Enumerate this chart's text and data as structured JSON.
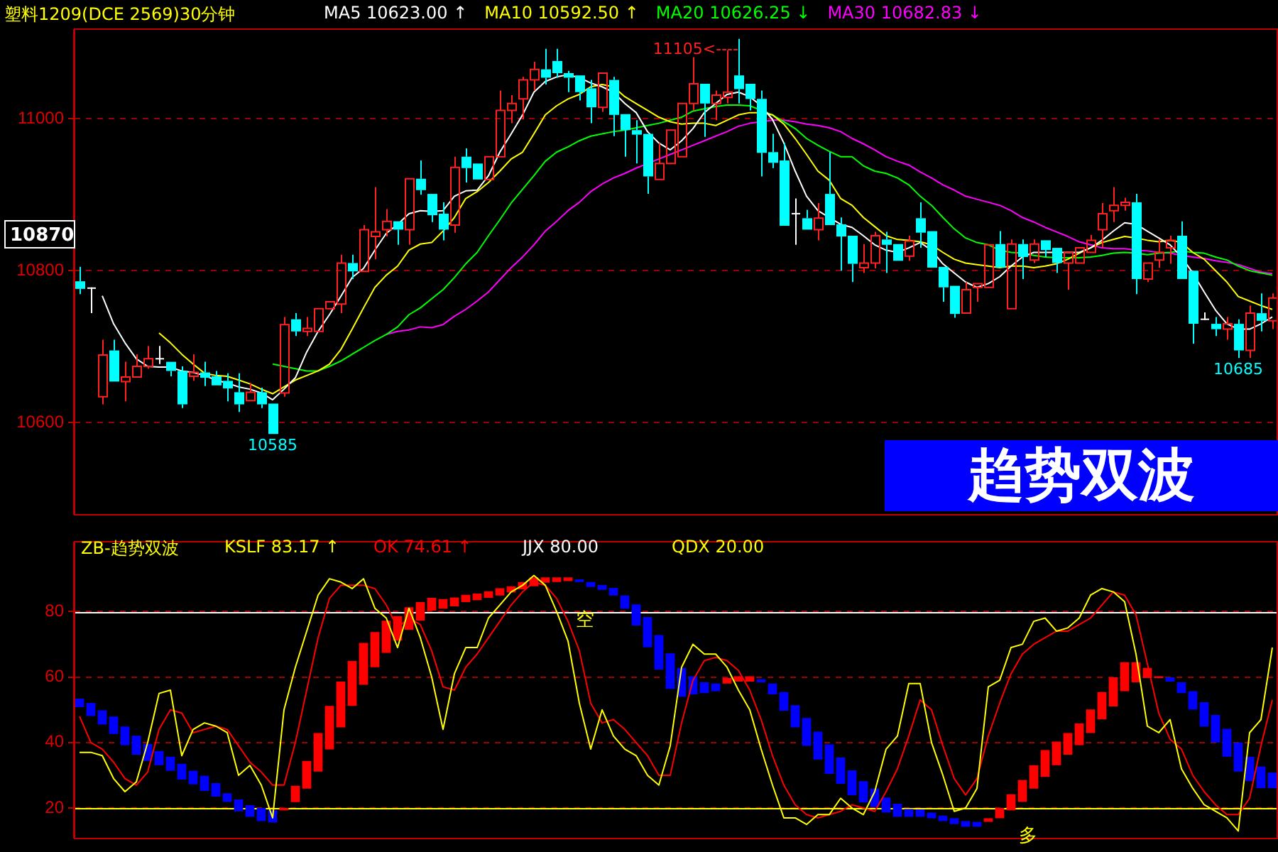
{
  "chart_data": [
    {
      "type": "candlestick",
      "title": "塑料1209(DCE 2569)30分钟",
      "legend": "top",
      "grid": "y",
      "tick_labels": "y",
      "categories": [
        null,
        null,
        null,
        null,
        null,
        null,
        null,
        null,
        null,
        null,
        null,
        null,
        null,
        null,
        null,
        null,
        null,
        null,
        null,
        null,
        null,
        null,
        null,
        null,
        null,
        null,
        null,
        null,
        null,
        null,
        null,
        null,
        null,
        null,
        null,
        null,
        null,
        null,
        null,
        null,
        null,
        null,
        null,
        null,
        null,
        null,
        null,
        null,
        null,
        null,
        null,
        null,
        null,
        null,
        null,
        null,
        null,
        null,
        null,
        null,
        null,
        null,
        null,
        null,
        null,
        null,
        null,
        null,
        null,
        null,
        null,
        null,
        null,
        null,
        null,
        null,
        null,
        null,
        null,
        null,
        null,
        null,
        null,
        null,
        null,
        null,
        null,
        null,
        null,
        null,
        null,
        null,
        null,
        null,
        null,
        null,
        null,
        null,
        null,
        null,
        null,
        null,
        null,
        null,
        null,
        null
      ],
      "ohlc": [
        [
          10786,
          10805,
          10769,
          10776
        ],
        [
          10777,
          10778,
          10744,
          10777
        ],
        [
          10634,
          10709,
          10624,
          10689
        ],
        [
          10695,
          10709,
          10654,
          10654
        ],
        [
          10654,
          10680,
          10628,
          10660
        ],
        [
          10660,
          10690,
          10660,
          10674
        ],
        [
          10674,
          10701,
          10671,
          10684
        ],
        [
          10684,
          10701,
          10677,
          10684
        ],
        [
          10680,
          10680,
          10661,
          10668
        ],
        [
          10668,
          10674,
          10619,
          10624
        ],
        [
          10661,
          10690,
          10655,
          10666
        ],
        [
          10666,
          10680,
          10648,
          10659
        ],
        [
          10661,
          10668,
          10649,
          10649
        ],
        [
          10655,
          10665,
          10628,
          10645
        ],
        [
          10640,
          10665,
          10614,
          10624
        ],
        [
          10629,
          10652,
          10629,
          10640
        ],
        [
          10640,
          10646,
          10619,
          10624
        ],
        [
          10625,
          10625,
          10585,
          10585
        ],
        [
          10639,
          10739,
          10634,
          10729
        ],
        [
          10736,
          10744,
          10714,
          10720
        ],
        [
          10720,
          10739,
          10714,
          10724
        ],
        [
          10720,
          10750,
          10720,
          10750
        ],
        [
          10750,
          10759,
          10750,
          10759
        ],
        [
          10756,
          10821,
          10744,
          10810
        ],
        [
          10810,
          10821,
          10789,
          10799
        ],
        [
          10799,
          10860,
          10799,
          10854
        ],
        [
          10845,
          10910,
          10815,
          10851
        ],
        [
          10854,
          10881,
          10845,
          10865
        ],
        [
          10865,
          10865,
          10834,
          10854
        ],
        [
          10854,
          10921,
          10834,
          10921
        ],
        [
          10921,
          10945,
          10900,
          10906
        ],
        [
          10901,
          10901,
          10864,
          10873
        ],
        [
          10875,
          10890,
          10840,
          10854
        ],
        [
          10860,
          10950,
          10850,
          10936
        ],
        [
          10950,
          10961,
          10916,
          10935
        ],
        [
          10941,
          10941,
          10920,
          10920
        ],
        [
          10920,
          10950,
          10920,
          10950
        ],
        [
          10950,
          11037,
          10950,
          11011
        ],
        [
          11011,
          11031,
          10994,
          11020
        ],
        [
          11026,
          11055,
          10999,
          11051
        ],
        [
          11051,
          11075,
          11037,
          11065
        ],
        [
          11065,
          11092,
          11045,
          11054
        ],
        [
          11076,
          11092,
          11054,
          11060
        ],
        [
          11060,
          11063,
          11035,
          11054
        ],
        [
          11057,
          11057,
          11024,
          11035
        ],
        [
          11040,
          11051,
          10994,
          11015
        ],
        [
          11015,
          11060,
          11009,
          11060
        ],
        [
          11051,
          11055,
          10977,
          11005
        ],
        [
          11006,
          11006,
          10950,
          10985
        ],
        [
          10985,
          10998,
          10941,
          10979
        ],
        [
          10980,
          10980,
          10901,
          10924
        ],
        [
          10920,
          10968,
          10920,
          10941
        ],
        [
          10941,
          10985,
          10941,
          10985
        ],
        [
          10950,
          11020,
          10950,
          11020
        ],
        [
          11020,
          11081,
          11011,
          11046
        ],
        [
          11046,
          11046,
          10976,
          11020
        ],
        [
          11020,
          11037,
          10998,
          11031
        ],
        [
          11028,
          11090,
          11020,
          11035
        ],
        [
          11057,
          11105,
          11020,
          11039
        ],
        [
          11046,
          11046,
          11011,
          11026
        ],
        [
          11026,
          11037,
          10924,
          10955
        ],
        [
          10956,
          10980,
          10935,
          10942
        ],
        [
          10945,
          10968,
          10859,
          10859
        ],
        [
          10875,
          10895,
          10834,
          10875
        ],
        [
          10869,
          10880,
          10854,
          10854
        ],
        [
          10854,
          10889,
          10840,
          10869
        ],
        [
          10901,
          10956,
          10860,
          10860
        ],
        [
          10861,
          10870,
          10800,
          10845
        ],
        [
          10846,
          10846,
          10785,
          10809
        ],
        [
          10804,
          10835,
          10797,
          10810
        ],
        [
          10810,
          10851,
          10803,
          10846
        ],
        [
          10841,
          10851,
          10797,
          10834
        ],
        [
          10835,
          10835,
          10813,
          10813
        ],
        [
          10819,
          10846,
          10813,
          10839
        ],
        [
          10869,
          10890,
          10830,
          10850
        ],
        [
          10852,
          10852,
          10804,
          10804
        ],
        [
          10805,
          10805,
          10759,
          10778
        ],
        [
          10780,
          10780,
          10738,
          10743
        ],
        [
          10744,
          10785,
          10744,
          10775
        ],
        [
          10778,
          10783,
          10759,
          10783
        ],
        [
          10778,
          10834,
          10778,
          10834
        ],
        [
          10835,
          10852,
          10804,
          10804
        ],
        [
          10750,
          10841,
          10750,
          10835
        ],
        [
          10835,
          10841,
          10789,
          10818
        ],
        [
          10814,
          10841,
          10810,
          10835
        ],
        [
          10840,
          10840,
          10818,
          10827
        ],
        [
          10830,
          10830,
          10797,
          10810
        ],
        [
          10810,
          10824,
          10775,
          10824
        ],
        [
          10810,
          10830,
          10810,
          10830
        ],
        [
          10824,
          10847,
          10824,
          10840
        ],
        [
          10854,
          10889,
          10830,
          10875
        ],
        [
          10879,
          10910,
          10864,
          10886
        ],
        [
          10886,
          10896,
          10879,
          10890
        ],
        [
          10890,
          10901,
          10769,
          10789
        ],
        [
          10789,
          10810,
          10785,
          10810
        ],
        [
          10814,
          10841,
          10804,
          10824
        ],
        [
          10830,
          10846,
          10809,
          10840
        ],
        [
          10846,
          10865,
          10789,
          10789
        ],
        [
          10800,
          10800,
          10704,
          10730
        ],
        [
          10736,
          10745,
          10735,
          10736
        ],
        [
          10730,
          10739,
          10714,
          10723
        ],
        [
          10723,
          10739,
          10709,
          10730
        ],
        [
          10730,
          10736,
          10685,
          10695
        ],
        [
          10695,
          10754,
          10685,
          10744
        ],
        [
          10744,
          10770,
          10720,
          10734
        ],
        [
          10734,
          10770,
          10723,
          10764
        ]
      ],
      "series": [
        {
          "name": "MA5 10623.00 ↑",
          "color": "#ffffff",
          "type": "line",
          "values": [
            null,
            null,
            10767,
            10730,
            10705,
            10684,
            10674,
            10673,
            10673,
            10668,
            10666,
            10662,
            10656,
            10652,
            10647,
            10644,
            10639,
            10630,
            10644,
            10659,
            10693,
            10720,
            10742,
            10766,
            10791,
            10803,
            10827,
            10849,
            10861,
            10875,
            10879,
            10878,
            10879,
            10898,
            10905,
            10906,
            10925,
            10956,
            10980,
            11005,
            11035,
            11049,
            11055,
            11058,
            11054,
            11047,
            11042,
            11035,
            11020,
            11008,
            10983,
            10968,
            10959,
            10971,
            10987,
            11008,
            11020,
            11032,
            11035,
            11029,
            11017,
            10999,
            10968,
            10931,
            10898,
            10879,
            10870,
            10861,
            10857,
            10846,
            10834,
            10827,
            10824,
            10830,
            10837,
            10827,
            10809,
            10797,
            10785,
            10778,
            10783,
            10792,
            10806,
            10818,
            10824,
            10824,
            10824,
            10824,
            10824,
            10830,
            10840,
            10852,
            10863,
            10861,
            10852,
            10843,
            10834,
            10818,
            10797,
            10772,
            10748,
            10730,
            10723,
            10723,
            10730,
            10739
          ]
        },
        {
          "name": "MA10 10592.50 ↑",
          "color": "#ffff00",
          "type": "line",
          "values": [
            null,
            null,
            null,
            null,
            null,
            null,
            null,
            10718,
            10705,
            10690,
            10677,
            10665,
            10662,
            10661,
            10656,
            10651,
            10644,
            10638,
            10647,
            10656,
            10662,
            10668,
            10677,
            10696,
            10723,
            10751,
            10778,
            10794,
            10806,
            10827,
            10835,
            10837,
            10852,
            10870,
            10895,
            10904,
            10916,
            10931,
            10947,
            10956,
            10980,
            11005,
            11017,
            11026,
            11032,
            11042,
            11045,
            11042,
            11029,
            11020,
            11011,
            11002,
            10996,
            10993,
            10994,
            10994,
            10991,
            10998,
            11005,
            11008,
            11008,
            11005,
            10993,
            10974,
            10953,
            10931,
            10919,
            10895,
            10886,
            10870,
            10858,
            10846,
            10841,
            10840,
            10838,
            10834,
            10824,
            10815,
            10810,
            10808,
            10806,
            10804,
            10806,
            10806,
            10804,
            10806,
            10809,
            10815,
            10823,
            10830,
            10837,
            10841,
            10845,
            10843,
            10840,
            10838,
            10840,
            10837,
            10824,
            10815,
            10800,
            10785,
            10766,
            10760,
            10754,
            10749
          ]
        },
        {
          "name": "MA20 10626.25 ↓",
          "color": "#00ff00",
          "type": "line",
          "values": [
            null,
            null,
            null,
            null,
            null,
            null,
            null,
            null,
            null,
            null,
            null,
            null,
            null,
            null,
            null,
            null,
            null,
            10677,
            10674,
            10671,
            10668,
            10668,
            10674,
            10681,
            10690,
            10699,
            10708,
            10716,
            10726,
            10742,
            10751,
            10763,
            10775,
            10791,
            10809,
            10824,
            10846,
            10867,
            10889,
            10907,
            10925,
            10944,
            10956,
            10963,
            10971,
            10977,
            10980,
            10983,
            10985,
            10988,
            10991,
            10994,
            10998,
            11002,
            11010,
            11013,
            11016,
            11018,
            11018,
            11017,
            11011,
            11005,
            10996,
            10987,
            10974,
            10965,
            10957,
            10950,
            10950,
            10938,
            10931,
            10928,
            10922,
            10913,
            10898,
            10886,
            10870,
            10855,
            10843,
            10837,
            10834,
            10827,
            10824,
            10823,
            10820,
            10818,
            10817,
            10817,
            10817,
            10818,
            10820,
            10823,
            10824,
            10823,
            10821,
            10823,
            10824,
            10826,
            10824,
            10823,
            10818,
            10814,
            10806,
            10800,
            10797,
            10794
          ]
        },
        {
          "name": "MA30 10682.83 ↓",
          "color": "#ff00ff",
          "type": "line",
          "values": [
            null,
            null,
            null,
            null,
            null,
            null,
            null,
            null,
            null,
            null,
            null,
            null,
            null,
            null,
            null,
            null,
            null,
            null,
            null,
            null,
            null,
            null,
            null,
            null,
            null,
            null,
            null,
            10716,
            10720,
            10722,
            10726,
            10725,
            10729,
            10740,
            10749,
            10760,
            10772,
            10788,
            10804,
            10818,
            10834,
            10852,
            10865,
            10879,
            10890,
            10904,
            10914,
            10922,
            10928,
            10935,
            10941,
            10947,
            10953,
            10959,
            10965,
            10971,
            10977,
            10983,
            10990,
            10994,
            10996,
            10998,
            10998,
            10996,
            10993,
            10991,
            10988,
            10983,
            10974,
            10967,
            10959,
            10950,
            10944,
            10939,
            10930,
            10922,
            10913,
            10906,
            10898,
            10894,
            10890,
            10886,
            10879,
            10870,
            10864,
            10857,
            10851,
            10845,
            10838,
            10834,
            10830,
            10829,
            10829,
            10827,
            10826,
            10824,
            10823,
            10820,
            10818,
            10816,
            10813,
            10811,
            10808,
            10803,
            10798,
            10796
          ]
        }
      ],
      "ylim": [
        10480,
        11117
      ],
      "yticks": [
        10600,
        10800,
        11000
      ],
      "annotations": [
        "11105<----",
        {
          "text": "10585",
          "y": 10585
        },
        {
          "text": "10685",
          "y": 10685
        },
        "10870",
        "趋势双波"
      ]
    },
    {
      "type": "bar",
      "title": "ZB-趋势双波",
      "legend": "top",
      "grid": "y",
      "tick_labels": "y",
      "categories": [
        null,
        null,
        null,
        null,
        null,
        null,
        null,
        null,
        null,
        null,
        null,
        null,
        null,
        null,
        null,
        null,
        null,
        null,
        null,
        null,
        null,
        null,
        null,
        null,
        null,
        null,
        null,
        null,
        null,
        null,
        null,
        null,
        null,
        null,
        null,
        null,
        null,
        null,
        null,
        null,
        null,
        null,
        null,
        null,
        null,
        null,
        null,
        null,
        null,
        null,
        null,
        null,
        null,
        null,
        null,
        null,
        null,
        null,
        null,
        null,
        null,
        null,
        null,
        null,
        null,
        null,
        null,
        null,
        null,
        null,
        null,
        null,
        null,
        null,
        null,
        null,
        null,
        null,
        null,
        null,
        null,
        null,
        null,
        null,
        null,
        null,
        null,
        null,
        null,
        null,
        null,
        null,
        null,
        null,
        null,
        null,
        null,
        null,
        null,
        null,
        null,
        null,
        null,
        null,
        null,
        null
      ],
      "series": [
        {
          "type": "bar",
          "colors": [
            "#0000ff",
            "#0000ff",
            "#0000ff",
            "#0000ff",
            "#0000ff",
            "#0000ff",
            "#0000ff",
            "#0000ff",
            "#0000ff",
            "#0000ff",
            "#0000ff",
            "#0000ff",
            "#0000ff",
            "#0000ff",
            "#0000ff",
            "#0000ff",
            "#0000ff",
            "#0000ff",
            "#ff0000",
            "#ff0000",
            "#ff0000",
            "#ff0000",
            "#ff0000",
            "#ff0000",
            "#ff0000",
            "#ff0000",
            "#ff0000",
            "#ff0000",
            "#ff0000",
            "#ff0000",
            "#ff0000",
            "#ff0000",
            "#ff0000",
            "#ff0000",
            "#ff0000",
            "#ff0000",
            "#ff0000",
            "#ff0000",
            "#ff0000",
            "#ff0000",
            "#ff0000",
            "#ff0000",
            "#ff0000",
            "#ff0000",
            "#0000ff",
            "#0000ff",
            "#0000ff",
            "#0000ff",
            "#0000ff",
            "#0000ff",
            "#0000ff",
            "#0000ff",
            "#0000ff",
            "#0000ff",
            "#0000ff",
            "#0000ff",
            "#0000ff",
            "#ff0000",
            "#ff0000",
            "#ff0000",
            "#0000ff",
            "#0000ff",
            "#0000ff",
            "#0000ff",
            "#0000ff",
            "#0000ff",
            "#0000ff",
            "#0000ff",
            "#0000ff",
            "#0000ff",
            "#0000ff",
            "#0000ff",
            "#0000ff",
            "#0000ff",
            "#0000ff",
            "#0000ff",
            "#0000ff",
            "#0000ff",
            "#0000ff",
            "#0000ff",
            "#ff0000",
            "#ff0000",
            "#ff0000",
            "#ff0000",
            "#ff0000",
            "#ff0000",
            "#ff0000",
            "#ff0000",
            "#ff0000",
            "#ff0000",
            "#ff0000",
            "#ff0000",
            "#ff0000",
            "#ff0000",
            "#ff0000",
            "#ff0000",
            "#0000ff",
            "#0000ff",
            "#0000ff",
            "#0000ff",
            "#0000ff",
            "#0000ff",
            "#0000ff",
            "#0000ff",
            "#0000ff",
            "#0000ff"
          ],
          "base": [
            50.8,
            48.1,
            45.5,
            42.6,
            39.2,
            36.3,
            34.4,
            33.1,
            31.4,
            28.7,
            27.2,
            25.2,
            23.5,
            21.9,
            19.0,
            17.3,
            16.0,
            15.6,
            19.3,
            21.8,
            25.9,
            31.1,
            37.9,
            44.6,
            51.2,
            57.6,
            63.0,
            67.4,
            71.1,
            74.4,
            77.2,
            80.3,
            80.9,
            81.6,
            82.9,
            83.5,
            84.2,
            84.9,
            85.8,
            86.8,
            87.7,
            88.8,
            89.0,
            89.3,
            89.0,
            87.5,
            86.6,
            84.9,
            80.9,
            75.7,
            69.1,
            62.3,
            56.4,
            54.0,
            54.7,
            55.1,
            55.7,
            58.0,
            58.6,
            58.6,
            58.4,
            54.7,
            49.7,
            44.6,
            39.0,
            34.8,
            30.4,
            27.4,
            23.9,
            21.7,
            20.3,
            18.6,
            17.3,
            17.3,
            17.3,
            16.9,
            16.0,
            15.1,
            14.3,
            14.3,
            15.8,
            16.9,
            19.3,
            21.9,
            25.9,
            29.5,
            33.1,
            36.3,
            39.2,
            42.9,
            47.1,
            51.0,
            55.7,
            58.4,
            59.7,
            59.7,
            58.6,
            55.1,
            50.1,
            44.9,
            40.0,
            35.7,
            31.1,
            28.2,
            26.1,
            26.1
          ],
          "values": [
            2.6,
            4.0,
            4.3,
            5.3,
            5.7,
            5.8,
            5.2,
            4.3,
            4.3,
            4.8,
            4.2,
            4.6,
            4.1,
            2.6,
            3.6,
            3.6,
            4.0,
            3.7,
            0.7,
            5.0,
            8.5,
            11.8,
            13.3,
            14.0,
            13.7,
            12.8,
            10.7,
            9.8,
            7.5,
            6.9,
            5.7,
            3.9,
            2.9,
            2.7,
            2.2,
            2.0,
            2.0,
            2.2,
            1.9,
            2.2,
            2.7,
            1.6,
            1.4,
            1.1,
            0.8,
            1.5,
            1.5,
            2.3,
            4.0,
            6.5,
            9.2,
            10.5,
            10.8,
            8.8,
            5.5,
            3.3,
            2.3,
            1.7,
            1.6,
            1.6,
            0.9,
            3.3,
            5.7,
            6.8,
            8.5,
            8.5,
            9.0,
            8.0,
            7.6,
            6.5,
            5.6,
            4.6,
            4.0,
            2.4,
            2.3,
            1.7,
            1.7,
            1.8,
            1.7,
            1.5,
            1.1,
            3.1,
            4.9,
            6.6,
            7.2,
            8.2,
            7.2,
            6.6,
            6.6,
            7.2,
            8.3,
            8.9,
            8.8,
            6.1,
            3.1,
            0.5,
            1.3,
            3.3,
            5.6,
            7.4,
            8.4,
            8.5,
            8.9,
            7.5,
            6.6,
            4.7
          ]
        },
        {
          "name": "KSLF 83.17 ↑",
          "color": "#ffff00",
          "type": "line",
          "values": [
            37,
            37,
            36,
            29,
            25,
            28,
            40,
            55,
            56,
            36,
            44,
            46,
            45,
            43,
            30,
            33,
            27,
            17,
            50,
            63,
            74,
            85,
            90,
            89,
            87,
            90,
            81,
            78,
            69,
            81,
            72,
            60,
            44,
            61,
            69,
            69,
            78,
            82,
            86,
            88,
            91,
            88,
            80,
            71,
            52,
            38,
            50,
            42,
            38,
            36,
            30,
            27,
            39,
            63,
            70,
            67,
            67,
            63,
            56,
            50,
            38,
            27,
            17,
            17,
            15,
            18,
            18,
            23,
            20,
            18,
            25,
            38,
            42,
            58,
            58,
            40,
            30,
            19,
            20,
            26,
            57,
            59,
            69,
            70,
            77,
            78,
            74,
            75,
            78,
            85,
            87,
            86,
            83,
            67,
            45,
            43,
            47,
            32,
            26,
            21,
            19,
            17,
            13,
            43,
            47,
            69
          ]
        },
        {
          "name": "OK 74.61 ↑",
          "color": "#ff0000",
          "type": "line",
          "values": [
            48,
            40,
            38,
            34,
            29,
            27,
            31,
            44,
            50,
            49,
            43,
            44,
            45,
            44,
            39,
            34,
            31,
            27,
            27,
            40,
            56,
            72,
            84,
            88,
            88,
            88,
            87,
            82,
            75,
            78,
            76,
            68,
            57,
            56,
            63,
            67,
            72,
            77,
            82,
            86,
            89,
            88,
            84,
            77,
            68,
            52,
            46,
            47,
            44,
            40,
            36,
            30,
            30,
            46,
            59,
            65,
            66,
            65,
            62,
            56,
            47,
            36,
            27,
            21,
            18,
            17,
            18,
            19,
            21,
            20,
            19,
            25,
            32,
            42,
            53,
            50,
            39,
            29,
            24,
            29,
            42,
            52,
            61,
            67,
            70,
            72,
            74,
            74,
            76,
            78,
            82,
            86,
            85,
            79,
            64,
            49,
            41,
            38,
            30,
            25,
            21,
            18,
            18,
            23,
            39,
            53
          ]
        }
      ],
      "ylim": [
        11,
        101
      ],
      "yticks": [
        20,
        40,
        60,
        80
      ],
      "ref_lines": [
        {
          "axis": "y",
          "value": 80,
          "label": "JJX 80.00",
          "color": "#ffffff"
        },
        {
          "axis": "y",
          "value": 20,
          "label": "QDX 20.00",
          "color": "#ffff00"
        }
      ],
      "annotations": [
        "空",
        "多"
      ]
    }
  ]
}
